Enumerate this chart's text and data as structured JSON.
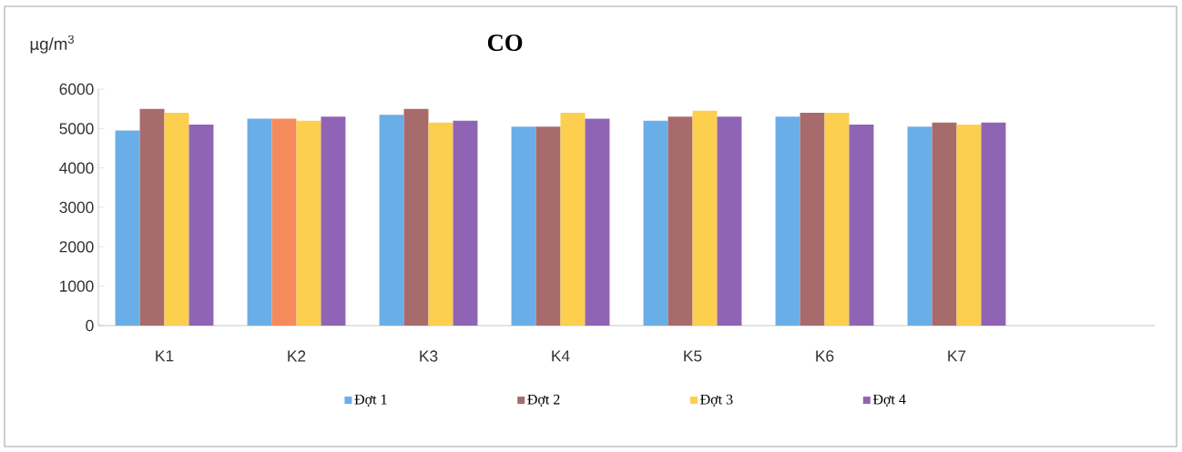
{
  "chart_data": {
    "type": "bar",
    "title": "CO",
    "ylabel": "µg/m$^{3}$",
    "categories": [
      "K1",
      "K2",
      "K3",
      "K4",
      "K5",
      "K6",
      "K7",
      null
    ],
    "series": [
      {
        "name": "Đợt 1",
        "color": "#6aaee8",
        "values": [
          4950,
          5250,
          5350,
          5050,
          5200,
          5300,
          5050,
          null
        ]
      },
      {
        "name": "Đợt 2",
        "color": "#a86b6b",
        "colors": [
          "#a86b6b",
          "#f58a5a",
          "#a86b6b",
          "#a86b6b",
          "#a86b6b",
          "#a86b6b",
          "#a86b6b",
          "#a86b6b"
        ],
        "values": [
          5500,
          5250,
          5500,
          5050,
          5300,
          5400,
          5150,
          null
        ]
      },
      {
        "name": "Đợt 3",
        "color": "#fccf4f",
        "values": [
          5400,
          5200,
          5150,
          5400,
          5450,
          5400,
          5100,
          null
        ]
      },
      {
        "name": "Đợt 4",
        "color": "#9064b4",
        "values": [
          5100,
          5300,
          5200,
          5250,
          5300,
          5100,
          5150,
          null
        ]
      }
    ],
    "ylim": [
      0,
      6000
    ],
    "yticks": [
      0,
      1000,
      2000,
      3000,
      4000,
      5000,
      6000
    ],
    "grid": false,
    "legend": "bottom"
  }
}
